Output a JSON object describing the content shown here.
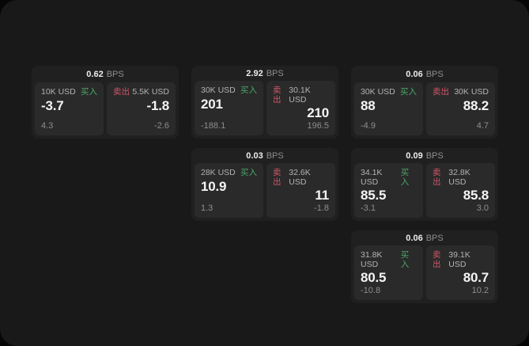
{
  "labels": {
    "bps_unit": "BPS",
    "buy_tag": "买入",
    "sell_tag": "卖出"
  },
  "colors": {
    "page_background": "#191919",
    "card_background": "#202020",
    "panel_background": "#2a2a2a",
    "buy_green": "#4aa86a",
    "sell_red": "#d25568",
    "value_text": "#f5f5f5",
    "muted_text": "#8e8e8e",
    "label_text": "#b3b3b3"
  },
  "cards": [
    {
      "grid": {
        "row": 1,
        "col": 1
      },
      "bps_value": "0.62",
      "bps_unit": "BPS",
      "buy": {
        "amount": "10K USD",
        "tag": "买入",
        "value": "-3.7",
        "sub": "4.3"
      },
      "sell": {
        "tag": "卖出",
        "amount": "5.5K USD",
        "value": "-1.8",
        "sub": "-2.6"
      }
    },
    {
      "grid": {
        "row": 1,
        "col": 2
      },
      "bps_value": "2.92",
      "bps_unit": "BPS",
      "buy": {
        "amount": "30K USD",
        "tag": "买入",
        "value": "201",
        "sub": "-188.1"
      },
      "sell": {
        "tag": "卖出",
        "amount": "30.1K USD",
        "value": "210",
        "sub": "196.5"
      }
    },
    {
      "grid": {
        "row": 1,
        "col": 3
      },
      "bps_value": "0.06",
      "bps_unit": "BPS",
      "buy": {
        "amount": "30K USD",
        "tag": "买入",
        "value": "88",
        "sub": "-4.9"
      },
      "sell": {
        "tag": "卖出",
        "amount": "30K USD",
        "value": "88.2",
        "sub": "4.7"
      }
    },
    {
      "grid": {
        "row": 2,
        "col": 2
      },
      "bps_value": "0.03",
      "bps_unit": "BPS",
      "buy": {
        "amount": "28K USD",
        "tag": "买入",
        "value": "10.9",
        "sub": "1.3"
      },
      "sell": {
        "tag": "卖出",
        "amount": "32.6K USD",
        "value": "11",
        "sub": "-1.8"
      }
    },
    {
      "grid": {
        "row": 2,
        "col": 3
      },
      "bps_value": "0.09",
      "bps_unit": "BPS",
      "buy": {
        "amount": "34.1K USD",
        "tag": "买入",
        "value": "85.5",
        "sub": "-3.1"
      },
      "sell": {
        "tag": "卖出",
        "amount": "32.8K USD",
        "value": "85.8",
        "sub": "3.0"
      }
    },
    {
      "grid": {
        "row": 3,
        "col": 3
      },
      "bps_value": "0.06",
      "bps_unit": "BPS",
      "buy": {
        "amount": "31.8K USD",
        "tag": "买入",
        "value": "80.5",
        "sub": "-10.8"
      },
      "sell": {
        "tag": "卖出",
        "amount": "39.1K USD",
        "value": "80.7",
        "sub": "10.2"
      }
    }
  ]
}
